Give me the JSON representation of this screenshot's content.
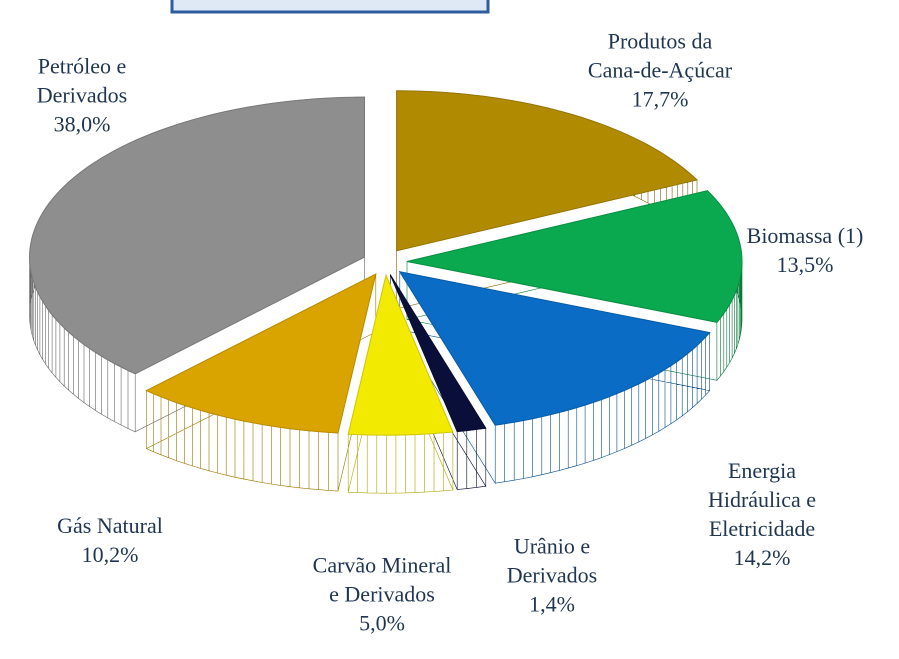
{
  "chart_data": {
    "type": "pie3d",
    "categories": [
      "Produtos da Cana-de-Açúcar",
      "Biomassa (1)",
      "Energia Hidráulica e Eletricidade",
      "Urânio e Derivados",
      "Carvão Mineral e Derivados",
      "Gás Natural",
      "Petróleo e Derivados"
    ],
    "values": [
      17.7,
      13.5,
      14.2,
      1.4,
      5.0,
      10.2,
      38.0
    ],
    "value_labels": [
      "17,7%",
      "13,5%",
      "14,2%",
      "1,4%",
      "5,0%",
      "10,2%",
      "38,0%"
    ],
    "colors": [
      "#b08a00",
      "#0aa84f",
      "#0a6cc4",
      "#0a0f3a",
      "#f2ea00",
      "#d9a400",
      "#8e8e8e"
    ]
  }
}
